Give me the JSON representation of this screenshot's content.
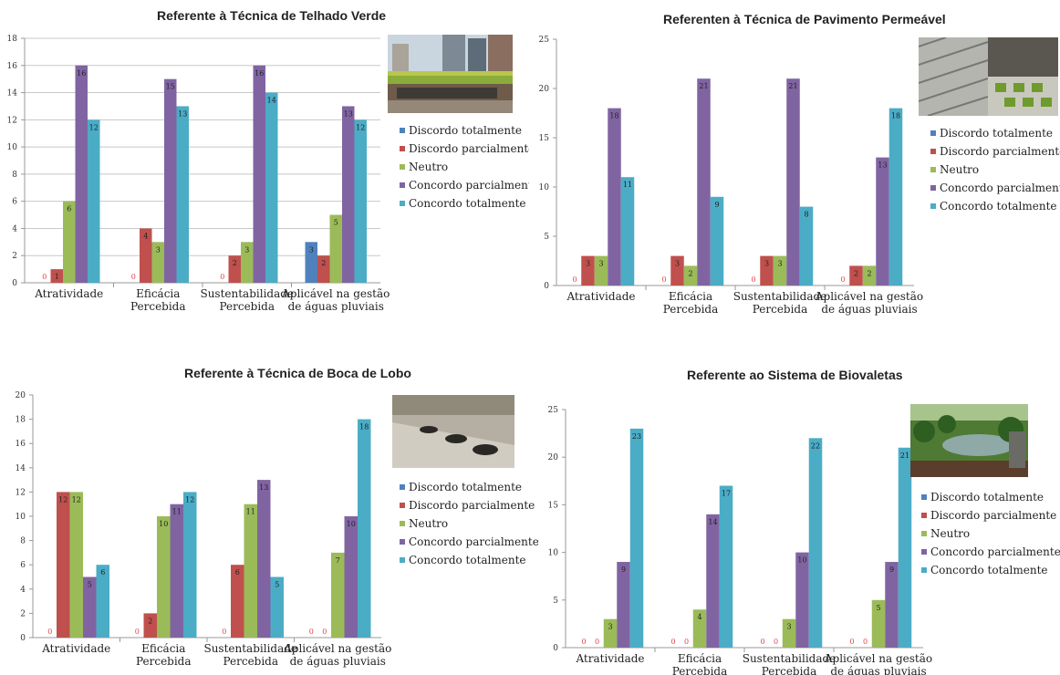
{
  "categories": [
    "Atratividade",
    "Eficácia Percebida",
    "Sustentabilidade Percebida",
    "Aplicável na gestão de águas pluviais"
  ],
  "legend": [
    "Discordo totalmente",
    "Discordo parcialmente",
    "Neutro",
    "Concordo parcialmente",
    "Concordo totalmente"
  ],
  "colors": {
    "discordo_totalmente": "#4f81bd",
    "discordo_parcialmente": "#c0504d",
    "neutro": "#9bbb59",
    "concordo_parcialmente": "#8064a2",
    "concordo_totalmente": "#4bacc6"
  },
  "chart_data": [
    {
      "type": "bar",
      "title": "Referente à Técnica de Telhado Verde",
      "categories": [
        [
          "Atratividade"
        ],
        [
          "Eficácia",
          "Percebida"
        ],
        [
          "Sustentabilidade",
          "Percebida"
        ],
        [
          "Aplicável na gestão",
          "de águas pluviais"
        ]
      ],
      "ylim": [
        0,
        18
      ],
      "ystep": 2,
      "series": [
        {
          "name": "Discordo totalmente",
          "values": [
            0,
            0,
            0,
            3
          ]
        },
        {
          "name": "Discordo parcialmente",
          "values": [
            1,
            4,
            2,
            2
          ]
        },
        {
          "name": "Neutro",
          "values": [
            6,
            3,
            3,
            5
          ]
        },
        {
          "name": "Concordo parcialmente",
          "values": [
            16,
            15,
            16,
            13
          ]
        },
        {
          "name": "Concordo totalmente",
          "values": [
            12,
            13,
            14,
            12
          ]
        }
      ],
      "grid": true,
      "legend_position": "right"
    },
    {
      "type": "bar",
      "title": "Referenten à Técnica de Pavimento Permeável",
      "categories": [
        [
          "Atratividade"
        ],
        [
          "Eficácia",
          "Percebida"
        ],
        [
          "Sustentabilidade",
          "Percebida"
        ],
        [
          "Aplicável na gestão",
          "de águas pluviais"
        ]
      ],
      "ylim": [
        0,
        25
      ],
      "ystep": 5,
      "series": [
        {
          "name": "Discordo totalmente",
          "values": [
            0,
            0,
            0,
            0
          ]
        },
        {
          "name": "Discordo parcialmente",
          "values": [
            3,
            3,
            3,
            2
          ]
        },
        {
          "name": "Neutro",
          "values": [
            3,
            2,
            3,
            2
          ]
        },
        {
          "name": "Concordo parcialmente",
          "values": [
            18,
            21,
            21,
            13
          ]
        },
        {
          "name": "Concordo totalmente",
          "values": [
            11,
            9,
            8,
            18
          ]
        }
      ],
      "grid": false,
      "legend_position": "right"
    },
    {
      "type": "bar",
      "title": "Referente à Técnica de Boca de Lobo",
      "categories": [
        [
          "Atratividade"
        ],
        [
          "Eficácia",
          "Percebida"
        ],
        [
          "Sustentabilidade",
          "Percebida"
        ],
        [
          "Aplicável na gestão",
          "de águas pluviais"
        ]
      ],
      "ylim": [
        0,
        20
      ],
      "ystep": 2,
      "series": [
        {
          "name": "Discordo totalmente",
          "values": [
            0,
            0,
            0,
            0
          ]
        },
        {
          "name": "Discordo parcialmente",
          "values": [
            12,
            2,
            6,
            0
          ]
        },
        {
          "name": "Neutro",
          "values": [
            12,
            10,
            11,
            7
          ]
        },
        {
          "name": "Concordo parcialmente",
          "values": [
            5,
            11,
            13,
            10
          ]
        },
        {
          "name": "Concordo totalmente",
          "values": [
            6,
            12,
            5,
            18
          ]
        }
      ],
      "grid": false,
      "legend_position": "right"
    },
    {
      "type": "bar",
      "title": "Referente ao Sistema de Biovaletas",
      "categories": [
        [
          "Atratividade"
        ],
        [
          "Eficácia",
          "Percebida"
        ],
        [
          "Sustentabilidade",
          "Percebida"
        ],
        [
          "Aplicável na gestão",
          "de águas pluviais"
        ]
      ],
      "ylim": [
        0,
        25
      ],
      "ystep": 5,
      "series": [
        {
          "name": "Discordo totalmente",
          "values": [
            0,
            0,
            0,
            0
          ]
        },
        {
          "name": "Discordo parcialmente",
          "values": [
            0,
            0,
            0,
            0
          ]
        },
        {
          "name": "Neutro",
          "values": [
            3,
            4,
            3,
            5
          ]
        },
        {
          "name": "Concordo parcialmente",
          "values": [
            9,
            14,
            10,
            9
          ]
        },
        {
          "name": "Concordo totalmente",
          "values": [
            23,
            17,
            22,
            21
          ]
        }
      ],
      "grid": false,
      "legend_position": "right"
    }
  ]
}
